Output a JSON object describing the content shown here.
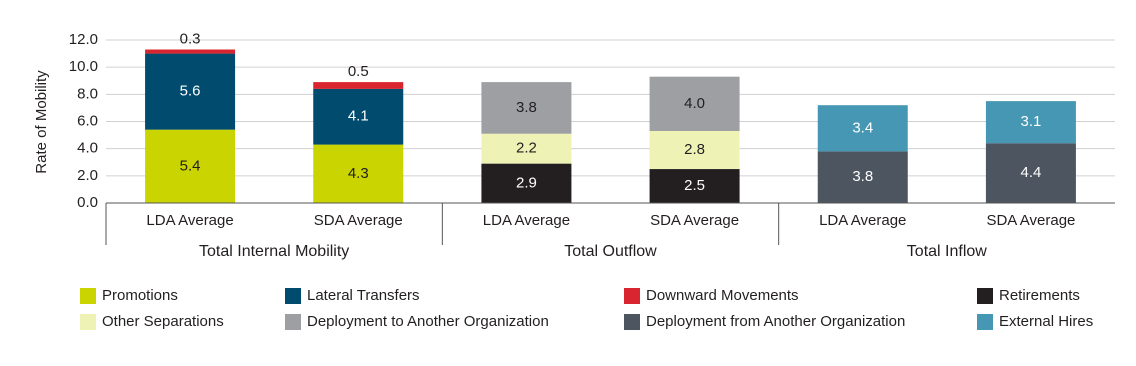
{
  "chart_data": {
    "type": "stacked_bar",
    "y_label": "Rate of Mobility",
    "categories": [
      "LDA Average",
      "SDA Average",
      "LDA Average",
      "SDA Average",
      "LDA Average",
      "SDA Average"
    ],
    "groups": [
      "Total Internal Mobility",
      "Total Outflow",
      "Total Inflow"
    ],
    "series": [
      {
        "name": "Promotions",
        "color": "#c9d400",
        "values": [
          5.4,
          4.3,
          null,
          null,
          null,
          null
        ],
        "value_labels": [
          "5.4",
          "4.3",
          null,
          null,
          null,
          null
        ]
      },
      {
        "name": "Lateral Transfers",
        "color": "#004b6e",
        "values": [
          5.6,
          4.1,
          null,
          null,
          null,
          null
        ],
        "value_labels": [
          "5.6",
          "4.1",
          null,
          null,
          null,
          null
        ]
      },
      {
        "name": "Downward Movements",
        "color": "#d9252f",
        "values": [
          0.3,
          0.5,
          null,
          null,
          null,
          null
        ],
        "value_labels": [
          "0.3",
          "0.5",
          null,
          null,
          null,
          null
        ]
      },
      {
        "name": "Retirements",
        "color": "#231f20",
        "values": [
          null,
          null,
          2.9,
          2.5,
          null,
          null
        ],
        "value_labels": [
          null,
          null,
          "2.9",
          "2.5",
          null,
          null
        ]
      },
      {
        "name": "Other Separations",
        "color": "#eef3b5",
        "values": [
          null,
          null,
          2.2,
          2.8,
          null,
          null
        ],
        "value_labels": [
          null,
          null,
          "2.2",
          "2.8",
          null,
          null
        ]
      },
      {
        "name": "Deployment to Another Organization",
        "color": "#9d9fa2",
        "values": [
          null,
          null,
          3.8,
          4.0,
          null,
          null
        ],
        "value_labels": [
          null,
          null,
          "3.8",
          "4.0",
          null,
          null
        ]
      },
      {
        "name": "Deployment from Another Organization",
        "color": "#4d5560",
        "values": [
          null,
          null,
          null,
          null,
          3.8,
          4.4
        ],
        "value_labels": [
          null,
          null,
          null,
          null,
          "3.8",
          "4.4"
        ]
      },
      {
        "name": "External Hires",
        "color": "#4597b3",
        "values": [
          null,
          null,
          null,
          null,
          3.4,
          3.1
        ],
        "value_labels": [
          null,
          null,
          null,
          null,
          "3.4",
          "3.1"
        ]
      }
    ],
    "ylim": [
      0,
      12
    ],
    "yticks": [
      {
        "value": 0,
        "label": "0.0"
      },
      {
        "value": 2,
        "label": "2.0"
      },
      {
        "value": 4,
        "label": "4.0"
      },
      {
        "value": 6,
        "label": "6.0"
      },
      {
        "value": 8,
        "label": "8.0"
      },
      {
        "value": 10,
        "label": "10.0"
      },
      {
        "value": 12,
        "label": "12.0"
      }
    ],
    "grid": true
  }
}
